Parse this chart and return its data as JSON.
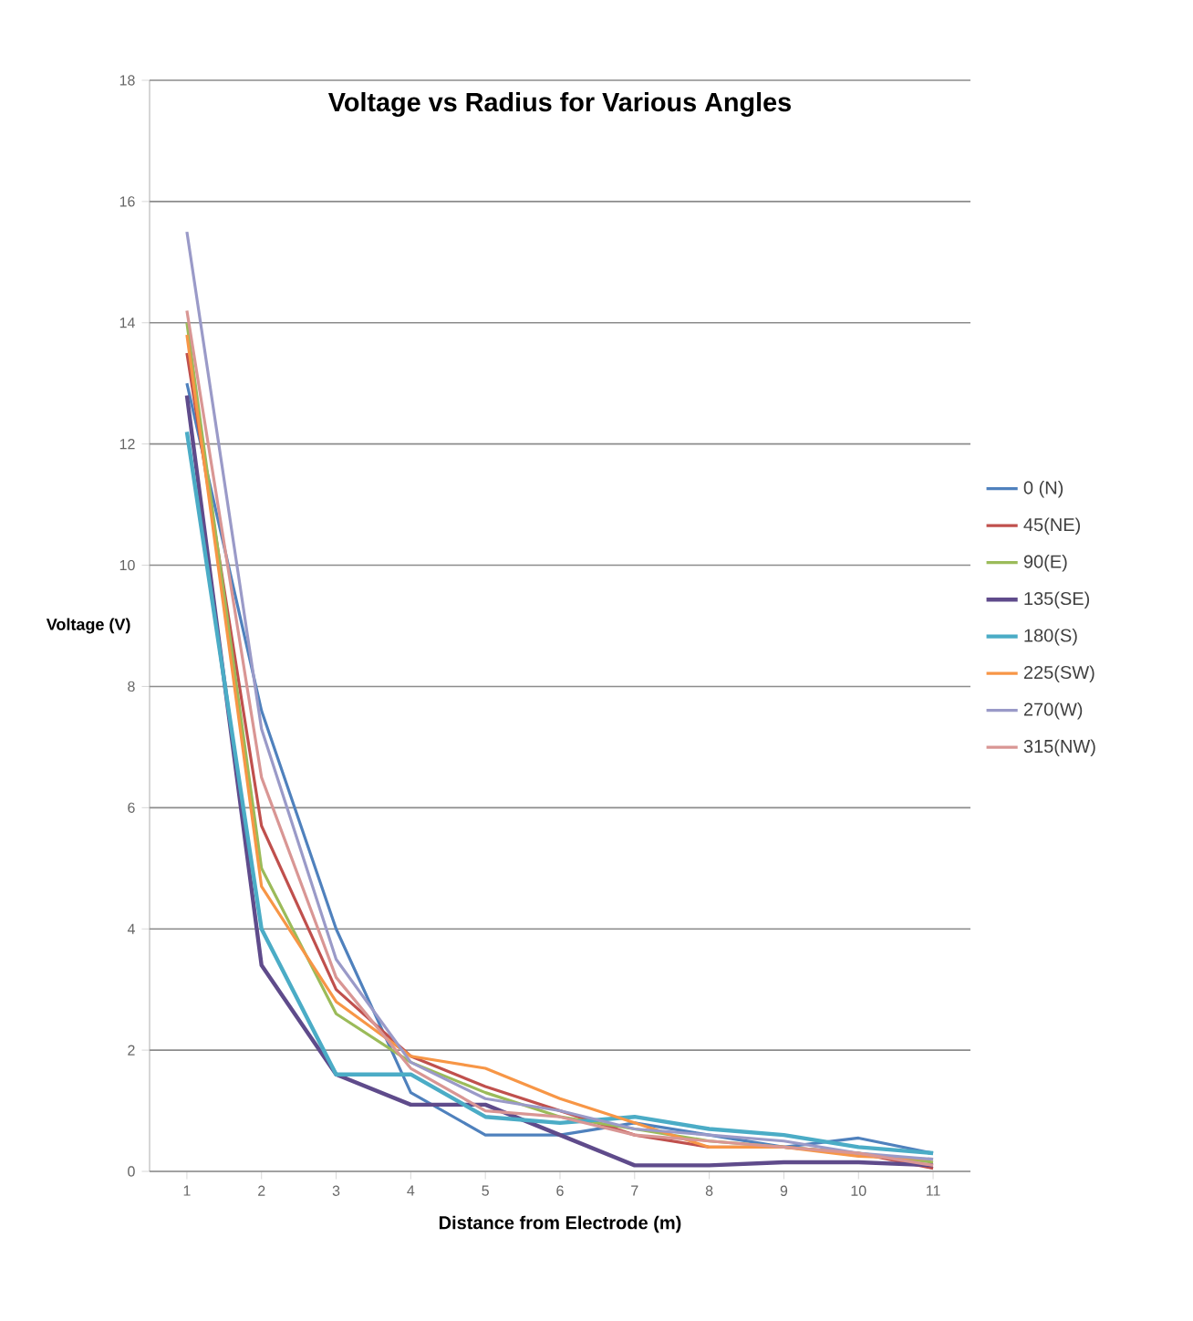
{
  "chart_data": {
    "type": "line",
    "title": "Voltage vs Radius for Various Angles",
    "xlabel": "Distance from Electrode (m)",
    "ylabel": "Voltage (V)",
    "categories": [
      "1",
      "2",
      "3",
      "4",
      "5",
      "6",
      "7",
      "8",
      "9",
      "10",
      "11"
    ],
    "series": [
      {
        "name": "0 (N)",
        "color": "#4f81bd",
        "values": [
          13.0,
          7.6,
          4.0,
          1.3,
          0.6,
          0.6,
          0.8,
          0.6,
          0.4,
          0.55,
          0.3
        ]
      },
      {
        "name": "45(NE)",
        "color": "#c0504d",
        "values": [
          13.5,
          5.7,
          3.0,
          1.9,
          1.4,
          1.0,
          0.6,
          0.4,
          0.4,
          0.3,
          0.05
        ]
      },
      {
        "name": "90(E)",
        "color": "#9bbb59",
        "values": [
          14.0,
          5.0,
          2.6,
          1.8,
          1.3,
          0.9,
          0.7,
          0.5,
          0.4,
          0.3,
          0.15
        ]
      },
      {
        "name": "135(SE)",
        "color": "#5f4b8b",
        "values": [
          12.8,
          3.4,
          1.6,
          1.1,
          1.1,
          0.6,
          0.1,
          0.1,
          0.15,
          0.15,
          0.1
        ]
      },
      {
        "name": "180(S)",
        "color": "#4bacc6",
        "values": [
          12.2,
          4.0,
          1.6,
          1.6,
          0.9,
          0.8,
          0.9,
          0.7,
          0.6,
          0.4,
          0.3
        ]
      },
      {
        "name": "225(SW)",
        "color": "#f79646",
        "values": [
          13.8,
          4.7,
          2.8,
          1.9,
          1.7,
          1.2,
          0.8,
          0.4,
          0.4,
          0.25,
          0.2
        ]
      },
      {
        "name": "270(W)",
        "color": "#9a9ac8",
        "values": [
          15.5,
          7.3,
          3.5,
          1.8,
          1.2,
          1.0,
          0.7,
          0.6,
          0.5,
          0.3,
          0.2
        ]
      },
      {
        "name": "315(NW)",
        "color": "#d99694",
        "values": [
          14.2,
          6.5,
          3.2,
          1.7,
          1.0,
          0.9,
          0.6,
          0.5,
          0.4,
          0.3,
          0.1
        ]
      }
    ],
    "ylim": [
      0,
      18
    ],
    "yticks": [
      0,
      2,
      4,
      6,
      8,
      10,
      12,
      14,
      16,
      18
    ],
    "grid": "y",
    "legend": "right",
    "marker": "none",
    "line_style": "solid"
  }
}
